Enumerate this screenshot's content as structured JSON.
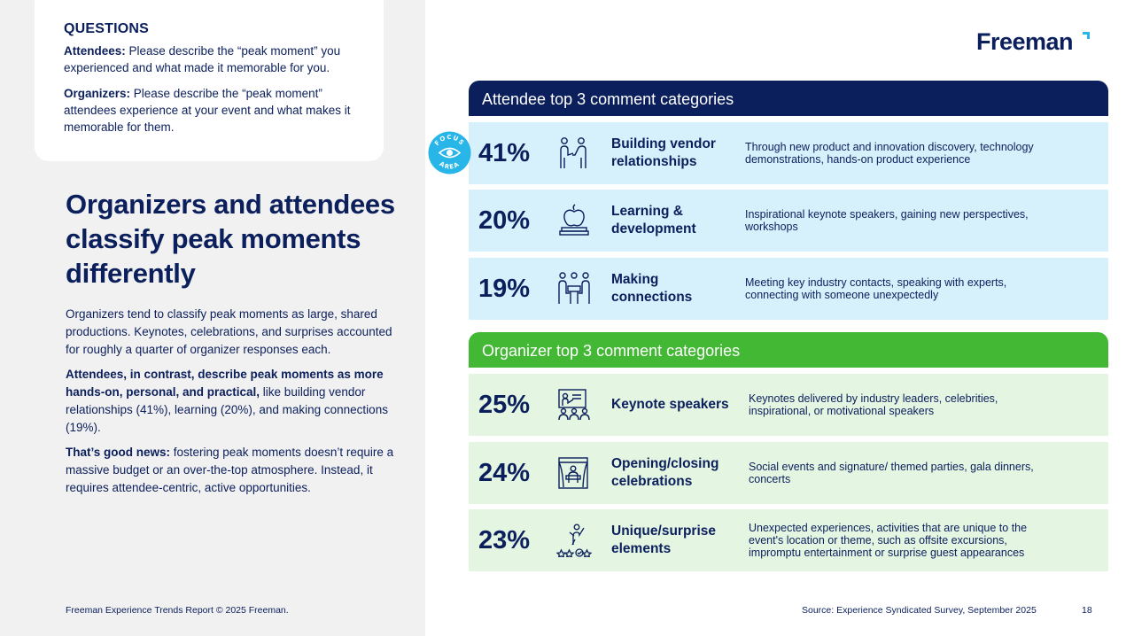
{
  "questions": {
    "heading": "QUESTIONS",
    "attendees_label": "Attendees:",
    "attendees_text": " Please describe the “peak moment” you experienced and what made it memorable for you.",
    "organizers_label": "Organizers:",
    "organizers_text": " Please describe the “peak moment” attendees experience at your event and what makes it memorable for them."
  },
  "headline": "Organizers and attendees classify peak moments differently",
  "body": {
    "p1": "Organizers tend to classify peak moments as large, shared productions. Keynotes, celebrations, and surprises accounted for roughly a quarter of organizer responses each.",
    "p2_bold": "Attendees, in contrast, describe peak moments as more hands-on, personal, and practical,",
    "p2_rest": " like building vendor relationships (41%), learning (20%), and making connections (19%).",
    "p3_bold": "That’s good news:",
    "p3_rest": " fostering peak moments doesn’t require a massive budget or an over-the-top atmosphere. Instead, it requires attendee-centric, active opportunities."
  },
  "logo": "Freeman",
  "focus_badge": {
    "top": "FOCUS",
    "bottom": "AREA"
  },
  "attendee": {
    "header": "Attendee top 3 comment categories",
    "rows": [
      {
        "pct": "41%",
        "icon": "handshake-people-icon",
        "category": "Building vendor relationships",
        "desc": "Through new product and innovation discovery, technology demonstrations, hands-on product experience"
      },
      {
        "pct": "20%",
        "icon": "apple-books-icon",
        "category": "Learning & development",
        "desc": "Inspirational keynote speakers, gaining new perspectives, workshops"
      },
      {
        "pct": "19%",
        "icon": "meeting-table-icon",
        "category": "Making connections",
        "desc": "Meeting key industry contacts, speaking with experts, connecting with someone unexpectedly"
      }
    ]
  },
  "organizer": {
    "header": "Organizer top 3 comment categories",
    "rows": [
      {
        "pct": "25%",
        "icon": "presentation-audience-icon",
        "category": "Keynote speakers",
        "desc": "Keynotes delivered by industry leaders, celebrities, inspirational, or motivational speakers"
      },
      {
        "pct": "24%",
        "icon": "stage-curtain-icon",
        "category": "Opening/closing celebrations",
        "desc": "Social events and signature/ themed parties, gala dinners, concerts"
      },
      {
        "pct": "23%",
        "icon": "person-stars-icon",
        "category": "Unique/surprise elements",
        "desc": "Unexpected experiences, activities that are unique to the event's location or theme, such as offsite excursions, impromptu entertainment or surprise guest appearances"
      }
    ]
  },
  "footer": {
    "copyright": "Freeman Experience Trends Report © 2025 Freeman.",
    "source": "Source: Experience Syndicated Survey, September 2025",
    "page": "18"
  },
  "colors": {
    "navy": "#0b1f5c",
    "green": "#43b835",
    "light_blue": "#d6f1fc",
    "light_green": "#e4f5e2",
    "accent_cyan": "#28b5e8"
  }
}
